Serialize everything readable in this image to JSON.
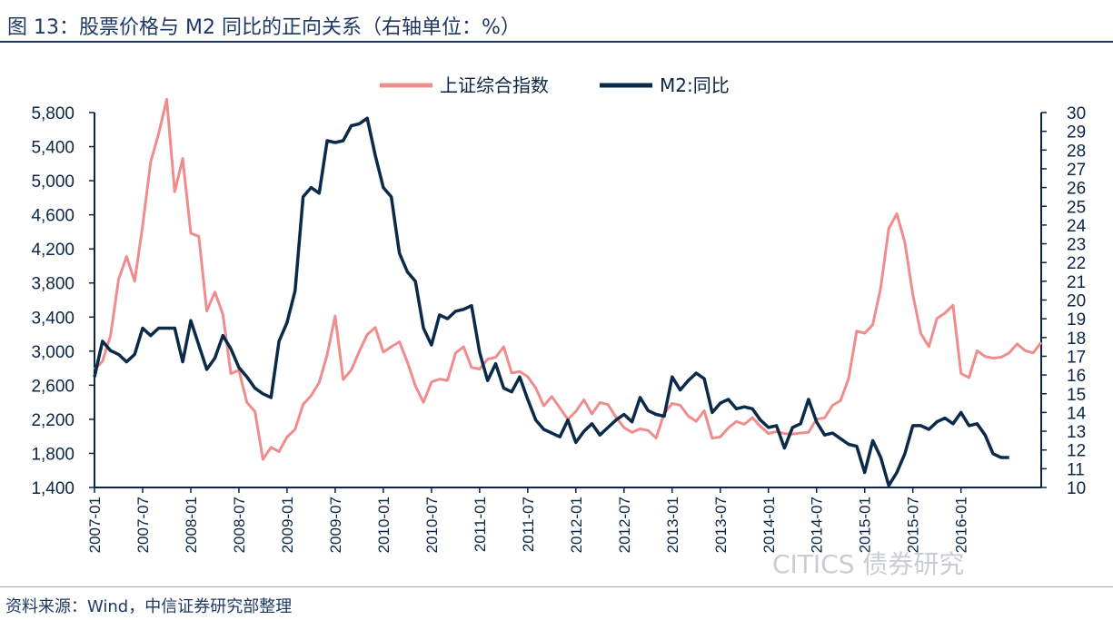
{
  "figure": {
    "title": "图 13：股票价格与 M2 同比的正向关系（右轴单位：%）",
    "source": "资料来源：Wind，中信证券研究部整理",
    "watermark": "CITICS 债券研究"
  },
  "chart_data": {
    "type": "line",
    "legend": [
      "上证综合指数",
      "M2:同比"
    ],
    "legend_position": "top-center",
    "x_tick_labels": [
      "2007-01",
      "2007-07",
      "2008-01",
      "2008-07",
      "2009-01",
      "2009-07",
      "2010-01",
      "2010-07",
      "2011-01",
      "2011-07",
      "2012-01",
      "2012-07",
      "2013-01",
      "2013-07",
      "2014-01",
      "2014-07",
      "2015-01",
      "2015-07",
      "2016-01"
    ],
    "x_start": "2007-01",
    "y_left": {
      "min": 1400,
      "max": 5800,
      "ticks": [
        "1,400",
        "1,800",
        "2,200",
        "2,600",
        "3,000",
        "3,400",
        "3,800",
        "4,200",
        "4,600",
        "5,000",
        "5,400",
        "5,800"
      ]
    },
    "y_right": {
      "min": 10,
      "max": 30,
      "ticks": [
        10,
        11,
        12,
        13,
        14,
        15,
        16,
        17,
        18,
        19,
        20,
        21,
        22,
        23,
        24,
        25,
        26,
        27,
        28,
        29,
        30
      ]
    },
    "colors": {
      "shanghai": "#f08c8c",
      "m2": "#0b2a4a",
      "axis": "#0b2545"
    },
    "series": [
      {
        "name": "上证综合指数",
        "axis": "left",
        "values": [
          2786,
          2881,
          3183,
          3841,
          4110,
          3821,
          4471,
          5219,
          5552,
          5955,
          4871,
          5261,
          4383,
          4348,
          3472,
          3693,
          3433,
          2736,
          2775,
          2397,
          2293,
          1729,
          1871,
          1821,
          1991,
          2083,
          2374,
          2477,
          2632,
          2959,
          3412,
          2667,
          2779,
          2996,
          3195,
          3277,
          2989,
          3051,
          3110,
          2871,
          2592,
          2398,
          2638,
          2672,
          2656,
          2978,
          3052,
          2808,
          2790,
          2905,
          2928,
          3050,
          2743,
          2762,
          2701,
          2567,
          2359,
          2468,
          2333,
          2199,
          2293,
          2428,
          2263,
          2397,
          2373,
          2225,
          2103,
          2047,
          2087,
          2069,
          1980,
          2269,
          2385,
          2366,
          2237,
          2177,
          2301,
          1979,
          1993,
          2098,
          2175,
          2142,
          2220,
          2116,
          2033,
          2056,
          2033,
          2026,
          2039,
          2048,
          2201,
          2217,
          2364,
          2420,
          2683,
          3235,
          3210,
          3310,
          3748,
          4441,
          4612,
          4277,
          3664,
          3206,
          3053,
          3383,
          3445,
          3539,
          2738,
          2688,
          3004,
          2938,
          2917,
          2929,
          2979,
          3085,
          3005,
          2980,
          3104
        ]
      },
      {
        "name": "M2:同比",
        "axis": "right",
        "values": [
          15.9,
          17.8,
          17.3,
          17.1,
          16.7,
          17.1,
          18.5,
          18.1,
          18.5,
          18.5,
          18.5,
          16.7,
          18.9,
          17.6,
          16.3,
          16.9,
          18.1,
          17.4,
          16.4,
          15.9,
          15.3,
          15.0,
          14.8,
          17.8,
          18.8,
          20.5,
          25.5,
          26.0,
          25.7,
          28.5,
          28.4,
          28.5,
          29.3,
          29.4,
          29.7,
          27.7,
          26.0,
          25.5,
          22.5,
          21.5,
          21.0,
          18.5,
          17.6,
          19.2,
          19.0,
          19.4,
          19.5,
          19.7,
          17.2,
          15.7,
          16.6,
          15.3,
          15.1,
          15.9,
          14.7,
          13.6,
          13.1,
          12.9,
          12.7,
          13.6,
          12.4,
          13.0,
          13.4,
          12.8,
          13.2,
          13.6,
          13.9,
          13.5,
          14.8,
          14.1,
          13.9,
          13.8,
          15.9,
          15.2,
          15.7,
          16.1,
          15.8,
          14.0,
          14.5,
          14.7,
          14.2,
          14.3,
          14.2,
          13.6,
          13.2,
          13.3,
          12.1,
          13.2,
          13.4,
          14.7,
          13.5,
          12.8,
          12.9,
          12.6,
          12.3,
          12.2,
          10.8,
          12.5,
          11.6,
          10.1,
          10.8,
          11.8,
          13.3,
          13.3,
          13.1,
          13.5,
          13.7,
          13.4,
          14.0,
          13.3,
          13.4,
          12.8,
          11.8,
          11.6,
          11.6
        ]
      }
    ]
  }
}
